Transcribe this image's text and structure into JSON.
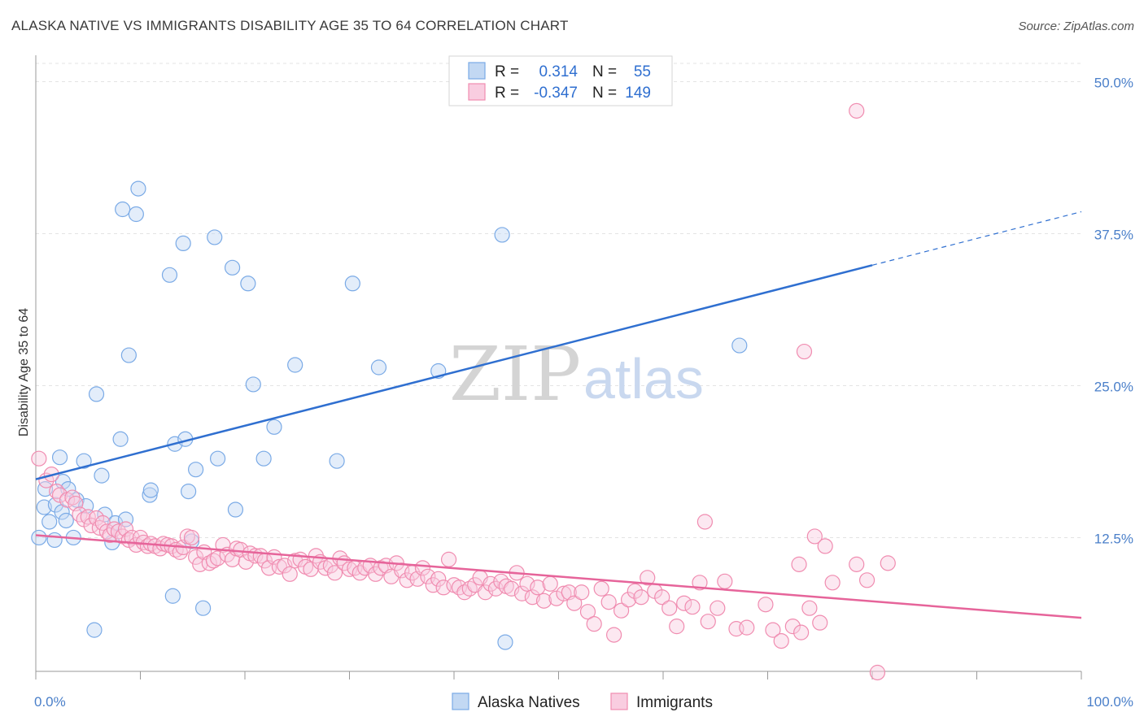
{
  "title": "ALASKA NATIVE VS IMMIGRANTS DISABILITY AGE 35 TO 64 CORRELATION CHART",
  "source": "Source: ZipAtlas.com",
  "watermark": {
    "part1": "ZIP",
    "part2": "atlas"
  },
  "legend": {
    "r_label": "R =",
    "n_label": "N =",
    "series": [
      {
        "r": "0.314",
        "n": "55"
      },
      {
        "r": "-0.347",
        "n": "149"
      }
    ]
  },
  "chart_data": {
    "type": "scatter",
    "ylabel": "Disability Age 35 to 64",
    "x_tick_labels": {
      "left": "0.0%",
      "right": "100.0%"
    },
    "y_tick_labels": [
      "12.5%",
      "25.0%",
      "37.5%",
      "50.0%"
    ],
    "y_ticks": [
      12.5,
      25.0,
      37.5,
      50.0
    ],
    "xlim": [
      0,
      100
    ],
    "ylim": [
      1.5,
      51.5
    ],
    "grid": true,
    "colors": {
      "alaska": "#7aaae6",
      "alaska_line": "#2f6fd0",
      "immigrants": "#f08cb0",
      "immigrants_line": "#e6649a"
    },
    "series": [
      {
        "name": "Alaska Natives",
        "trend": {
          "x0": 0,
          "y0": 17.3,
          "x1": 80,
          "y1": 34.9,
          "dash_to_x": 100,
          "dash_to_y": 39.3
        },
        "points": [
          [
            0.3,
            12.5
          ],
          [
            0.8,
            15.0
          ],
          [
            0.9,
            16.5
          ],
          [
            1.3,
            13.8
          ],
          [
            1.8,
            12.3
          ],
          [
            1.9,
            15.2
          ],
          [
            2.3,
            19.1
          ],
          [
            2.5,
            14.6
          ],
          [
            2.6,
            17.1
          ],
          [
            2.9,
            13.9
          ],
          [
            3.1,
            16.5
          ],
          [
            3.6,
            12.5
          ],
          [
            3.9,
            15.6
          ],
          [
            4.6,
            18.8
          ],
          [
            4.8,
            15.1
          ],
          [
            5.6,
            4.9
          ],
          [
            5.8,
            24.3
          ],
          [
            6.3,
            17.6
          ],
          [
            6.6,
            14.4
          ],
          [
            7.3,
            12.1
          ],
          [
            7.6,
            13.7
          ],
          [
            8.1,
            20.6
          ],
          [
            8.3,
            39.5
          ],
          [
            8.6,
            14.0
          ],
          [
            8.9,
            27.5
          ],
          [
            9.6,
            39.1
          ],
          [
            9.8,
            41.2
          ],
          [
            10.9,
            16.0
          ],
          [
            11.0,
            16.4
          ],
          [
            12.8,
            34.1
          ],
          [
            13.1,
            7.7
          ],
          [
            13.3,
            20.2
          ],
          [
            14.1,
            36.7
          ],
          [
            14.3,
            20.6
          ],
          [
            14.6,
            16.3
          ],
          [
            14.9,
            12.2
          ],
          [
            15.3,
            18.1
          ],
          [
            16.0,
            6.7
          ],
          [
            17.1,
            37.2
          ],
          [
            17.4,
            19.0
          ],
          [
            18.8,
            34.7
          ],
          [
            19.1,
            14.8
          ],
          [
            20.3,
            33.4
          ],
          [
            20.8,
            25.1
          ],
          [
            21.8,
            19.0
          ],
          [
            22.8,
            21.6
          ],
          [
            24.8,
            26.7
          ],
          [
            28.8,
            18.8
          ],
          [
            30.3,
            33.4
          ],
          [
            32.8,
            26.5
          ],
          [
            38.5,
            26.2
          ],
          [
            44.9,
            3.9
          ],
          [
            44.6,
            37.4
          ],
          [
            67.3,
            28.3
          ]
        ]
      },
      {
        "name": "Immigrants",
        "trend": {
          "x0": 0,
          "y0": 12.7,
          "x1": 100,
          "y1": 5.9
        },
        "points": [
          [
            0.3,
            19.0
          ],
          [
            1.0,
            17.2
          ],
          [
            1.5,
            17.7
          ],
          [
            2.0,
            16.3
          ],
          [
            2.3,
            16.0
          ],
          [
            3.0,
            15.6
          ],
          [
            3.5,
            15.8
          ],
          [
            3.8,
            15.3
          ],
          [
            4.2,
            14.4
          ],
          [
            4.6,
            14.0
          ],
          [
            5.0,
            14.2
          ],
          [
            5.3,
            13.5
          ],
          [
            5.8,
            14.1
          ],
          [
            6.1,
            13.3
          ],
          [
            6.4,
            13.7
          ],
          [
            6.8,
            13.0
          ],
          [
            7.1,
            12.7
          ],
          [
            7.5,
            13.2
          ],
          [
            7.9,
            13.0
          ],
          [
            8.3,
            12.6
          ],
          [
            8.6,
            13.2
          ],
          [
            8.9,
            12.3
          ],
          [
            9.2,
            12.5
          ],
          [
            9.6,
            11.9
          ],
          [
            10.0,
            12.5
          ],
          [
            10.3,
            12.1
          ],
          [
            10.7,
            11.8
          ],
          [
            11.0,
            12.0
          ],
          [
            11.4,
            11.8
          ],
          [
            11.9,
            11.6
          ],
          [
            12.2,
            12.0
          ],
          [
            12.6,
            11.9
          ],
          [
            13.0,
            11.8
          ],
          [
            13.4,
            11.5
          ],
          [
            13.8,
            11.3
          ],
          [
            14.1,
            11.7
          ],
          [
            14.5,
            12.6
          ],
          [
            14.9,
            12.5
          ],
          [
            15.3,
            10.9
          ],
          [
            15.7,
            10.3
          ],
          [
            16.1,
            11.3
          ],
          [
            16.6,
            10.4
          ],
          [
            17.0,
            10.6
          ],
          [
            17.4,
            10.8
          ],
          [
            17.9,
            11.9
          ],
          [
            18.3,
            11.1
          ],
          [
            18.8,
            10.7
          ],
          [
            19.2,
            11.6
          ],
          [
            19.6,
            11.5
          ],
          [
            20.1,
            10.5
          ],
          [
            20.5,
            11.2
          ],
          [
            21.0,
            11.0
          ],
          [
            21.5,
            11.0
          ],
          [
            21.9,
            10.6
          ],
          [
            22.3,
            10.0
          ],
          [
            22.8,
            10.9
          ],
          [
            23.3,
            10.1
          ],
          [
            23.8,
            10.2
          ],
          [
            24.3,
            9.5
          ],
          [
            24.8,
            10.6
          ],
          [
            25.3,
            10.7
          ],
          [
            25.8,
            10.1
          ],
          [
            26.3,
            9.9
          ],
          [
            26.8,
            11.0
          ],
          [
            27.2,
            10.5
          ],
          [
            27.7,
            10.0
          ],
          [
            28.2,
            10.2
          ],
          [
            28.6,
            9.6
          ],
          [
            29.1,
            10.8
          ],
          [
            29.5,
            10.4
          ],
          [
            30.0,
            9.9
          ],
          [
            30.5,
            10.0
          ],
          [
            31.0,
            9.6
          ],
          [
            31.5,
            10.0
          ],
          [
            32.0,
            10.2
          ],
          [
            32.5,
            9.5
          ],
          [
            33.0,
            10.0
          ],
          [
            33.5,
            10.2
          ],
          [
            34.0,
            9.3
          ],
          [
            34.5,
            10.4
          ],
          [
            35.0,
            9.8
          ],
          [
            35.5,
            9.0
          ],
          [
            36.0,
            9.6
          ],
          [
            36.5,
            9.1
          ],
          [
            37.0,
            10.0
          ],
          [
            37.5,
            9.3
          ],
          [
            38.0,
            8.6
          ],
          [
            38.5,
            9.1
          ],
          [
            39.0,
            8.4
          ],
          [
            39.5,
            10.7
          ],
          [
            40.0,
            8.6
          ],
          [
            40.5,
            8.4
          ],
          [
            41.0,
            8.0
          ],
          [
            41.5,
            8.3
          ],
          [
            42.0,
            8.6
          ],
          [
            42.5,
            9.2
          ],
          [
            43.0,
            8.0
          ],
          [
            43.5,
            8.7
          ],
          [
            44.0,
            8.3
          ],
          [
            44.5,
            8.9
          ],
          [
            45.0,
            8.5
          ],
          [
            45.5,
            8.3
          ],
          [
            46.0,
            9.6
          ],
          [
            46.5,
            7.9
          ],
          [
            47.0,
            8.7
          ],
          [
            47.5,
            7.6
          ],
          [
            48.0,
            8.4
          ],
          [
            48.6,
            7.3
          ],
          [
            49.2,
            8.7
          ],
          [
            49.8,
            7.5
          ],
          [
            50.5,
            7.9
          ],
          [
            51.0,
            8.0
          ],
          [
            51.5,
            7.1
          ],
          [
            52.2,
            8.0
          ],
          [
            52.8,
            6.4
          ],
          [
            53.4,
            5.4
          ],
          [
            54.1,
            8.3
          ],
          [
            54.8,
            7.2
          ],
          [
            55.3,
            4.5
          ],
          [
            56.0,
            6.5
          ],
          [
            56.7,
            7.4
          ],
          [
            57.3,
            8.1
          ],
          [
            57.9,
            7.6
          ],
          [
            58.5,
            9.2
          ],
          [
            59.2,
            8.1
          ],
          [
            59.9,
            7.6
          ],
          [
            60.6,
            6.7
          ],
          [
            61.3,
            5.2
          ],
          [
            62.0,
            7.1
          ],
          [
            62.8,
            6.8
          ],
          [
            63.5,
            8.8
          ],
          [
            64.3,
            5.6
          ],
          [
            65.2,
            6.7
          ],
          [
            65.9,
            8.9
          ],
          [
            67.0,
            5.0
          ],
          [
            68.0,
            5.1
          ],
          [
            69.8,
            7.0
          ],
          [
            70.5,
            4.9
          ],
          [
            71.3,
            4.0
          ],
          [
            72.4,
            5.2
          ],
          [
            73.2,
            4.7
          ],
          [
            74.0,
            6.7
          ],
          [
            75.0,
            5.5
          ],
          [
            76.2,
            8.8
          ],
          [
            64.0,
            13.8
          ],
          [
            73.0,
            10.3
          ],
          [
            74.5,
            12.6
          ],
          [
            75.5,
            11.8
          ],
          [
            78.5,
            10.3
          ],
          [
            79.5,
            9.0
          ],
          [
            80.5,
            1.4
          ],
          [
            81.5,
            10.4
          ],
          [
            73.5,
            27.8
          ],
          [
            78.5,
            47.6
          ]
        ]
      }
    ],
    "bottom_legend": [
      "Alaska Natives",
      "Immigrants"
    ]
  }
}
